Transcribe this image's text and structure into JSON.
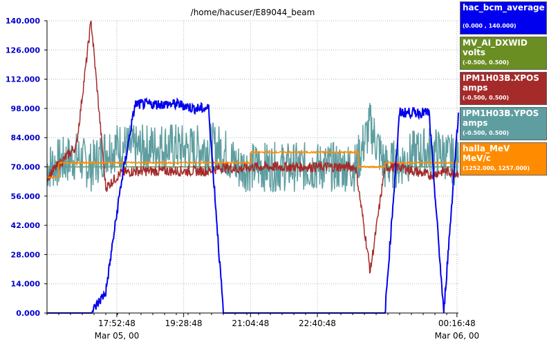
{
  "chart_data": {
    "type": "line",
    "title": "/home/hacuser/E89044_beam",
    "ylim": [
      0,
      140
    ],
    "ytick_labels": [
      "0.000",
      "14.000",
      "28.000",
      "42.000",
      "56.000",
      "70.000",
      "84.000",
      "98.000",
      "112.000",
      "126.000",
      "140.000"
    ],
    "xtick_labels": [
      {
        "time": "17:52:48",
        "date": "Mar 05, 00"
      },
      {
        "time": "19:28:48",
        "date": ""
      },
      {
        "time": "21:04:48",
        "date": ""
      },
      {
        "time": "22:40:48",
        "date": ""
      },
      {
        "time": "00:16:48",
        "date": "Mar 06, 00"
      }
    ],
    "grid": true,
    "legend_position": "right",
    "series": [
      {
        "name": "hac_bcm_average",
        "unit": "",
        "range": "(0.000 , 140.000)",
        "color": "#0000ee",
        "x": [
          0,
          3,
          4,
          5,
          6,
          7,
          8,
          9,
          10,
          11,
          12,
          13,
          16,
          17,
          18,
          19,
          22,
          23,
          24,
          25,
          26,
          27,
          28
        ],
        "y": [
          0,
          0,
          10,
          60,
          100,
          100,
          100,
          100,
          98,
          98,
          0,
          0,
          0,
          0,
          0,
          0,
          0,
          0,
          96,
          96,
          96,
          0,
          96
        ],
        "noise": 2.5
      },
      {
        "name": "MV_AI_DXWID",
        "unit": "volts",
        "range": "(-0.500, 0.500)",
        "color": "#6b8e23",
        "x": [
          0,
          28
        ],
        "y": [
          70,
          70
        ],
        "noise": 0
      },
      {
        "name": "IPM1H03B.XPOS",
        "unit": "amps",
        "range": "(-0.500, 0.500)",
        "color": "#a52a2a",
        "x": [
          0,
          2,
          3,
          4,
          5,
          6,
          10,
          11,
          12,
          13,
          14,
          17,
          18,
          19,
          20,
          21,
          22,
          23,
          24,
          25,
          26,
          27,
          28
        ],
        "y": [
          65,
          80,
          140,
          60,
          67,
          68,
          68,
          68,
          70,
          69,
          70,
          70,
          70,
          70,
          70,
          70,
          20,
          70,
          70,
          68,
          66,
          68,
          67
        ],
        "noise": 2.5
      },
      {
        "name": "IPM1H03B.YPOS",
        "unit": "amps",
        "range": "(-0.500, 0.500)",
        "color": "#5f9ea0",
        "x": [
          0,
          2,
          3,
          4,
          5,
          6,
          8,
          10,
          11,
          12,
          13,
          14,
          17,
          18,
          19,
          20,
          21,
          22,
          23,
          24,
          25,
          26,
          27,
          28
        ],
        "y": [
          70,
          75,
          70,
          78,
          80,
          78,
          80,
          78,
          80,
          78,
          70,
          70,
          70,
          70,
          70,
          70,
          70,
          90,
          70,
          72,
          76,
          78,
          76,
          72
        ],
        "noise": 12
      },
      {
        "name": "halla_MeV",
        "unit": "MeV/c",
        "range": "(1252.000, 1257.000)",
        "color": "#ff8c00",
        "x": [
          0,
          0.8,
          0.8,
          3,
          6,
          9,
          10,
          13.9,
          13.9,
          20,
          21.2,
          21.2,
          22,
          23,
          23,
          28
        ],
        "y": [
          65,
          65,
          72,
          72,
          72,
          72,
          72,
          72,
          77,
          77,
          77,
          70,
          70,
          70,
          72,
          72
        ],
        "noise": 0.4
      }
    ]
  }
}
